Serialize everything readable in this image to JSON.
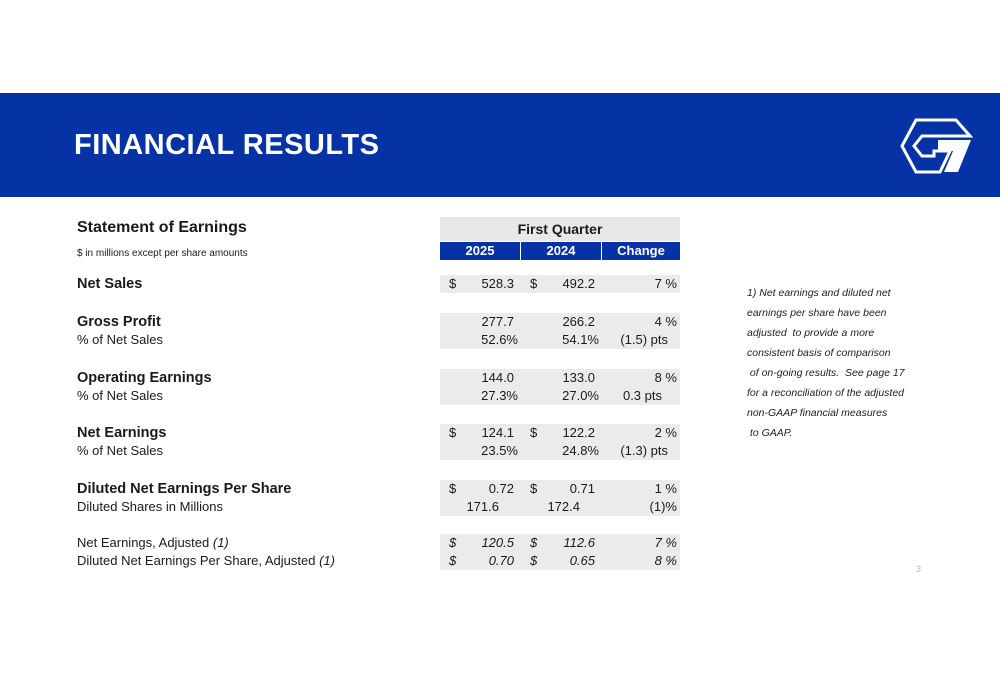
{
  "header": {
    "title": "FINANCIAL RESULTS"
  },
  "statement": {
    "title": "Statement of Earnings",
    "subtitle": "$ in millions except per share amounts",
    "period": "First Quarter",
    "columns": [
      "2025",
      "2024",
      "Change"
    ]
  },
  "rows": {
    "net_sales": {
      "label": "Net Sales",
      "d1": "$",
      "v1": "528.3",
      "d2": "$",
      "v2": "492.2",
      "chg": "7 %"
    },
    "gross_profit": {
      "label": "Gross Profit",
      "v1": "277.7",
      "v2": "266.2",
      "chg": "4 %"
    },
    "gp_pct": {
      "label": "% of Net Sales",
      "v1": "52.6%",
      "v2": "54.1%",
      "chg": "(1.5) pts"
    },
    "op_earn": {
      "label": "Operating Earnings",
      "v1": "144.0",
      "v2": "133.0",
      "chg": "8 %"
    },
    "op_pct": {
      "label": "% of Net Sales",
      "v1": "27.3%",
      "v2": "27.0%",
      "chg": "0.3 pts"
    },
    "net_earn": {
      "label": "Net Earnings",
      "d1": "$",
      "v1": "124.1",
      "d2": "$",
      "v2": "122.2",
      "chg": "2 %"
    },
    "ne_pct": {
      "label": "% of Net Sales",
      "v1": "23.5%",
      "v2": "24.8%",
      "chg": "(1.3) pts"
    },
    "eps": {
      "label": "Diluted Net Earnings Per Share",
      "d1": "$",
      "v1": "0.72",
      "d2": "$",
      "v2": "0.71",
      "chg": "1 %"
    },
    "shares": {
      "label": "Diluted Shares in Millions",
      "v1": "171.6",
      "v2": "172.4",
      "chg": "(1)%"
    },
    "ne_adj": {
      "label": "Net Earnings, Adjusted ",
      "footnote": "(1)",
      "d1": "$",
      "v1": "120.5",
      "d2": "$",
      "v2": "112.6",
      "chg": "7 %"
    },
    "eps_adj": {
      "label": "Diluted Net Earnings Per Share, Adjusted ",
      "footnote": "(1)",
      "d1": "$",
      "v1": "0.70",
      "d2": "$",
      "v2": "0.65",
      "chg": "8 %"
    }
  },
  "footnote": {
    "lines": [
      "1) Net earnings and diluted net",
      "earnings per share have been",
      "adjusted  to provide a more",
      "consistent basis of comparison",
      " of on-going results.  See page 17",
      "for a reconciliation of the adjusted",
      "non-GAAP financial measures",
      " to GAAP."
    ]
  },
  "page_number": "3",
  "colors": {
    "brand_blue": "#0533a6",
    "row_gray": "#ebebeb"
  }
}
